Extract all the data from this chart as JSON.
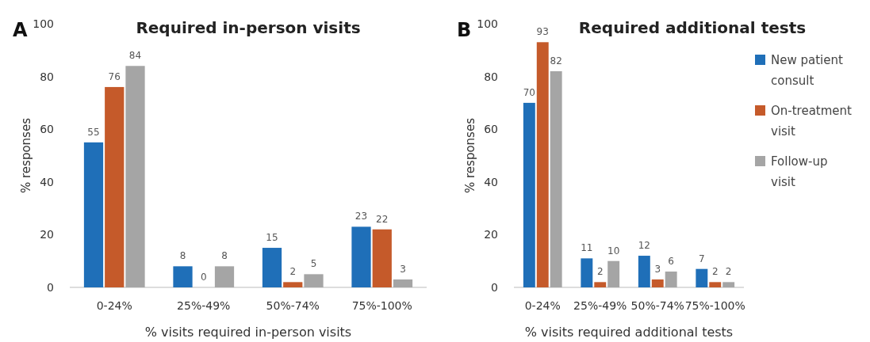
{
  "chart_data": [
    {
      "type": "bar",
      "title": "Required in-person visits",
      "xlabel": "% visits required in-person visits",
      "ylabel": "% responses",
      "annotations": [
        "A"
      ],
      "categories": [
        "0-24%",
        "25%-49%",
        "50%-74%",
        "75%-100%"
      ],
      "series": [
        {
          "color": "#1f6fb8",
          "values": [
            55,
            8,
            15,
            23
          ]
        },
        {
          "color": "#c55a2a",
          "values": [
            76,
            0,
            2,
            22
          ]
        },
        {
          "color": "#a5a5a5",
          "values": [
            84,
            8,
            5,
            3
          ]
        }
      ],
      "ylim": [
        0,
        100
      ],
      "yticks": [
        0,
        20,
        40,
        60,
        80,
        100
      ],
      "data_labels": true,
      "legend": false,
      "grid": false
    },
    {
      "type": "bar",
      "title": "Required additional tests",
      "xlabel": "% visits required additional tests",
      "ylabel": "% responses",
      "annotations": [
        "B"
      ],
      "categories": [
        "0-24%",
        "25%-49%",
        "50%-74%",
        "75%-100%"
      ],
      "series": [
        {
          "name": "New patient consult",
          "color": "#1f6fb8",
          "values": [
            70,
            11,
            12,
            7
          ]
        },
        {
          "name": "On-treatment visit",
          "color": "#c55a2a",
          "values": [
            93,
            2,
            3,
            2
          ]
        },
        {
          "name": "Follow-up visit",
          "color": "#a5a5a5",
          "values": [
            82,
            10,
            6,
            2
          ]
        }
      ],
      "ylim": [
        0,
        100
      ],
      "yticks": [
        0,
        20,
        40,
        60,
        80,
        100
      ],
      "data_labels": true,
      "legend": "top right",
      "grid": false
    }
  ]
}
